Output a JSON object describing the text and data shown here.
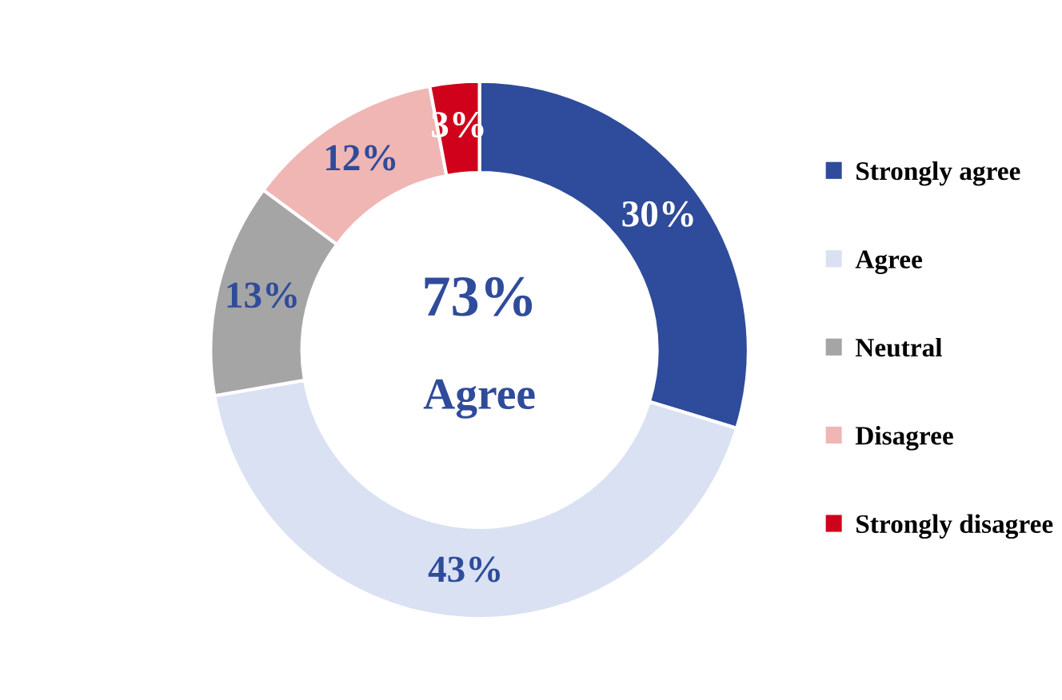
{
  "chart_data": {
    "type": "donut",
    "categories": [
      "Strongly agree",
      "Agree",
      "Neutral",
      "Disagree",
      "Strongly disagree"
    ],
    "values": [
      30,
      43,
      13,
      12,
      3
    ],
    "colors": [
      "#2f4b9b",
      "#d9e1f3",
      "#a5a5a5",
      "#efb6b4",
      "#d0021b"
    ],
    "value_labels": [
      "30%",
      "43%",
      "13%",
      "12%",
      "3%"
    ],
    "annotations": [
      "73%",
      "Agree"
    ],
    "legend": "right"
  }
}
